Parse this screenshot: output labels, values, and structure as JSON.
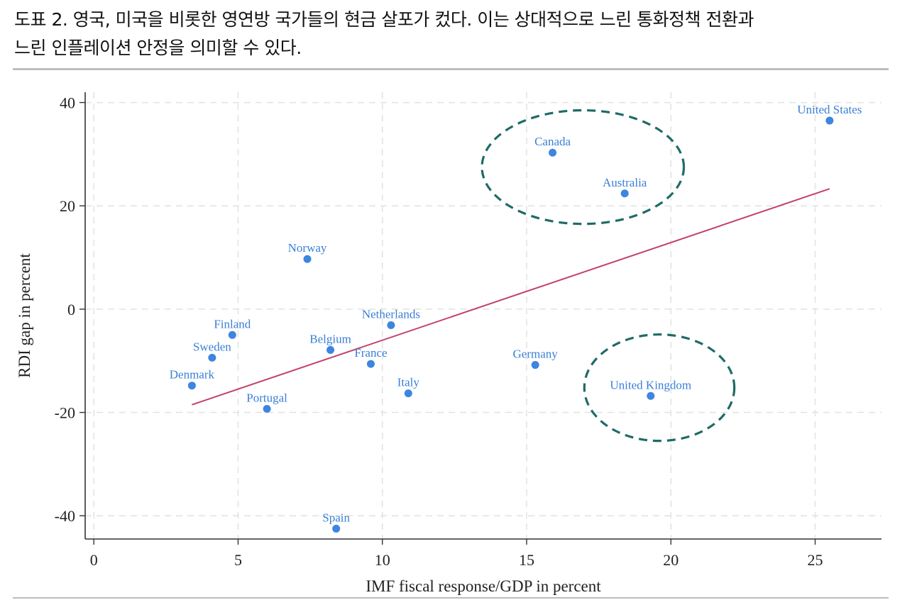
{
  "caption": {
    "line1": "도표 2. 영국, 미국을 비롯한 영연방 국가들의 현금 살포가 컸다. 이는 상대적으로 느린 통화정책 전환과",
    "line2": "느린 인플레이션 안정을 의미할 수 있다."
  },
  "colors": {
    "point": "#3d85e0",
    "label": "#3a7fd6",
    "fit_line": "#c2416b",
    "circle": "#1f6b66",
    "grid": "#e2e2e2",
    "axis": "#333333"
  },
  "chart_data": {
    "type": "scatter",
    "xlabel": "IMF fiscal response/GDP in percent",
    "ylabel": "RDI gap in percent",
    "xlim": [
      -0.3,
      27.3
    ],
    "ylim": [
      -44.5,
      42
    ],
    "xticks": [
      0,
      5,
      10,
      15,
      20,
      25
    ],
    "yticks": [
      -40,
      -20,
      0,
      20,
      40
    ],
    "grid": true,
    "points": [
      {
        "label": "United States",
        "x": 25.5,
        "y": 36.5
      },
      {
        "label": "Canada",
        "x": 15.9,
        "y": 30.3
      },
      {
        "label": "Australia",
        "x": 18.4,
        "y": 22.4
      },
      {
        "label": "Norway",
        "x": 7.4,
        "y": 9.7
      },
      {
        "label": "Netherlands",
        "x": 10.3,
        "y": -3.1
      },
      {
        "label": "Finland",
        "x": 4.8,
        "y": -5.0
      },
      {
        "label": "Sweden",
        "x": 4.1,
        "y": -9.4
      },
      {
        "label": "Belgium",
        "x": 8.2,
        "y": -7.9
      },
      {
        "label": "France",
        "x": 9.6,
        "y": -10.6
      },
      {
        "label": "Denmark",
        "x": 3.4,
        "y": -14.8
      },
      {
        "label": "Portugal",
        "x": 6.0,
        "y": -19.3
      },
      {
        "label": "Italy",
        "x": 10.9,
        "y": -16.3
      },
      {
        "label": "Germany",
        "x": 15.3,
        "y": -10.8
      },
      {
        "label": "United Kingdom",
        "x": 19.3,
        "y": -16.8
      },
      {
        "label": "Spain",
        "x": 8.4,
        "y": -42.5
      }
    ],
    "fit_line": {
      "x": [
        3.4,
        25.5
      ],
      "y": [
        -18.5,
        23.3
      ]
    },
    "highlight_circles": [
      {
        "cx": 16.95,
        "cy": 27.5,
        "rx": 3.5,
        "ry": 11.0
      },
      {
        "cx": 19.6,
        "cy": -15.2,
        "rx": 2.6,
        "ry": 10.3
      }
    ]
  }
}
